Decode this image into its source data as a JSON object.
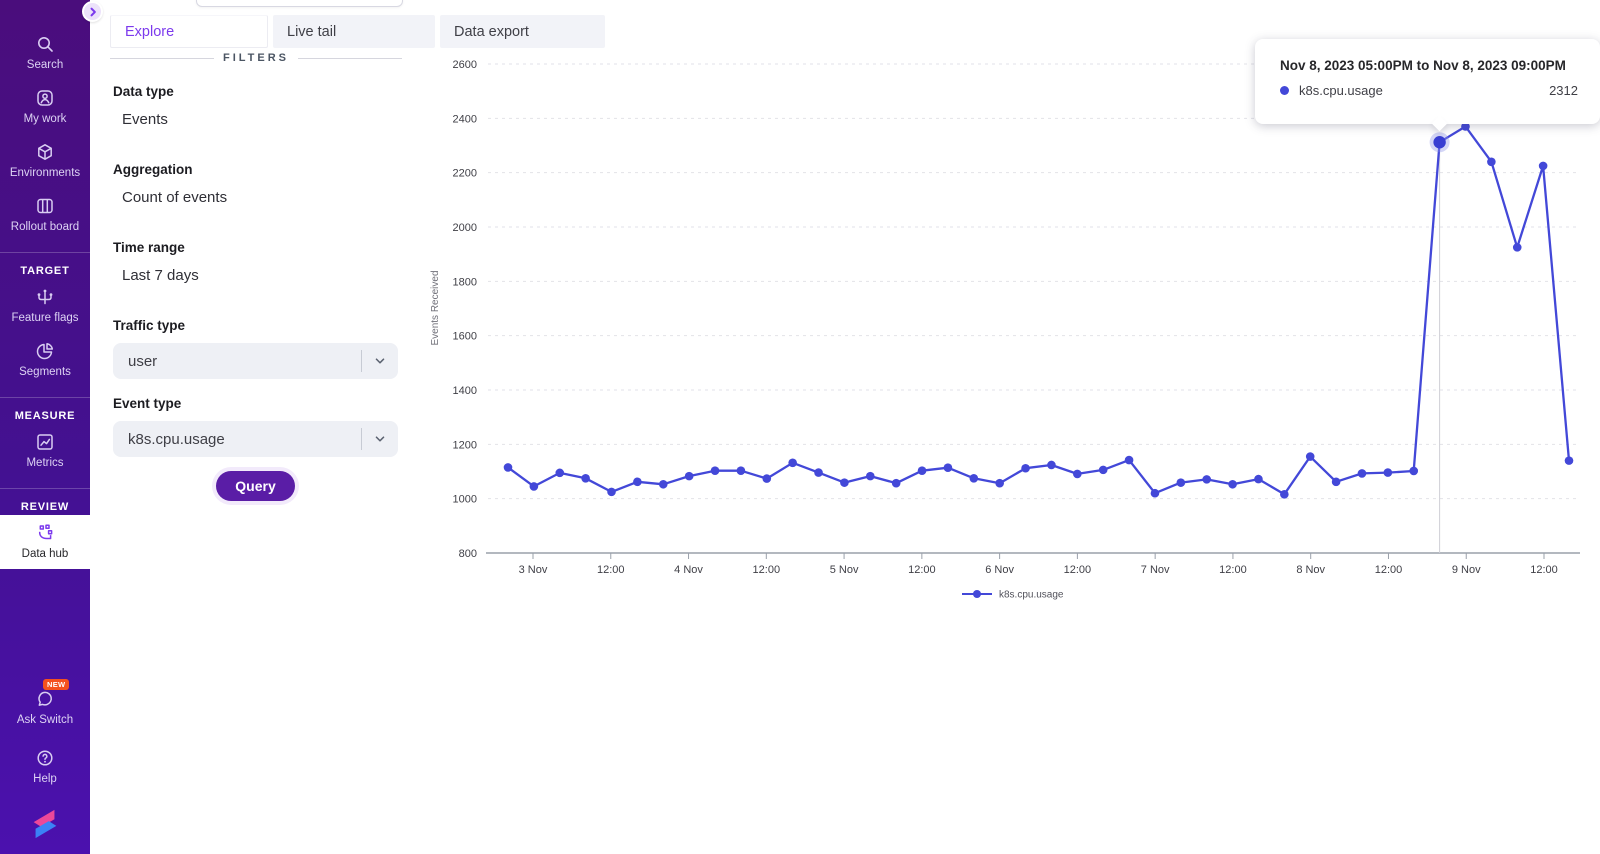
{
  "app": {
    "accent_color": "#7c3aed",
    "series_color": "#4348d8",
    "badge_color": "#f4511e"
  },
  "sidebar": {
    "groups": [
      {
        "items": [
          {
            "icon": "search-icon",
            "label": "Search"
          },
          {
            "icon": "my-work-icon",
            "label": "My work"
          },
          {
            "icon": "environments-icon",
            "label": "Environments"
          },
          {
            "icon": "rollout-board-icon",
            "label": "Rollout board"
          }
        ]
      },
      {
        "header": "TARGET",
        "items": [
          {
            "icon": "feature-flags-icon",
            "label": "Feature flags"
          },
          {
            "icon": "segments-icon",
            "label": "Segments"
          }
        ]
      },
      {
        "header": "MEASURE",
        "items": [
          {
            "icon": "metrics-icon",
            "label": "Metrics"
          }
        ]
      },
      {
        "header": "REVIEW",
        "items": [
          {
            "icon": "data-hub-icon",
            "label": "Data hub",
            "active": true
          }
        ]
      }
    ],
    "footer": [
      {
        "icon": "ask-switch-icon",
        "label": "Ask Switch",
        "badge": "NEW"
      },
      {
        "icon": "help-icon",
        "label": "Help"
      }
    ]
  },
  "tabs": [
    {
      "label": "Explore",
      "active": true
    },
    {
      "label": "Live tail",
      "active": false
    },
    {
      "label": "Data export",
      "active": false
    }
  ],
  "filters": {
    "heading": "FILTERS",
    "fields": [
      {
        "label": "Data type",
        "value": "Events",
        "control": "text"
      },
      {
        "label": "Aggregation",
        "value": "Count of events",
        "control": "text"
      },
      {
        "label": "Time range",
        "value": "Last 7 days",
        "control": "text"
      },
      {
        "label": "Traffic type",
        "value": "user",
        "control": "select"
      },
      {
        "label": "Event type",
        "value": "k8s.cpu.usage",
        "control": "select"
      }
    ],
    "query_button": "Query"
  },
  "tooltip": {
    "title": "Nov 8, 2023 05:00PM to Nov 8, 2023 09:00PM",
    "series": "k8s.cpu.usage",
    "value": "2312",
    "dot_color": "#4348d8"
  },
  "chart_data": {
    "type": "line",
    "title": "",
    "xlabel": "",
    "ylabel": "Events Received",
    "ylim": [
      800,
      2600
    ],
    "y_ticks": [
      800,
      1000,
      1200,
      1400,
      1600,
      1800,
      2000,
      2200,
      2400,
      2600
    ],
    "x_tick_labels": [
      "3 Nov",
      "12:00",
      "4 Nov",
      "12:00",
      "5 Nov",
      "12:00",
      "6 Nov",
      "12:00",
      "7 Nov",
      "12:00",
      "8 Nov",
      "12:00",
      "9 Nov",
      "12:00"
    ],
    "grid": "dashed-horizontal",
    "legend_position": "bottom",
    "series": [
      {
        "name": "k8s.cpu.usage",
        "color": "#4348d8",
        "point_interval_hours": 4,
        "values": [
          1115,
          1045,
          1095,
          1075,
          1025,
          1062,
          1053,
          1083,
          1103,
          1103,
          1074,
          1132,
          1096,
          1059,
          1083,
          1057,
          1103,
          1114,
          1075,
          1057,
          1112,
          1124,
          1091,
          1106,
          1142,
          1020,
          1059,
          1071,
          1053,
          1072,
          1016,
          1155,
          1062,
          1093,
          1096,
          1102,
          2312,
          2370,
          2240,
          1925,
          2225,
          1140
        ]
      }
    ],
    "highlighted_point": {
      "series": "k8s.cpu.usage",
      "index": 36,
      "value": 2312
    }
  }
}
